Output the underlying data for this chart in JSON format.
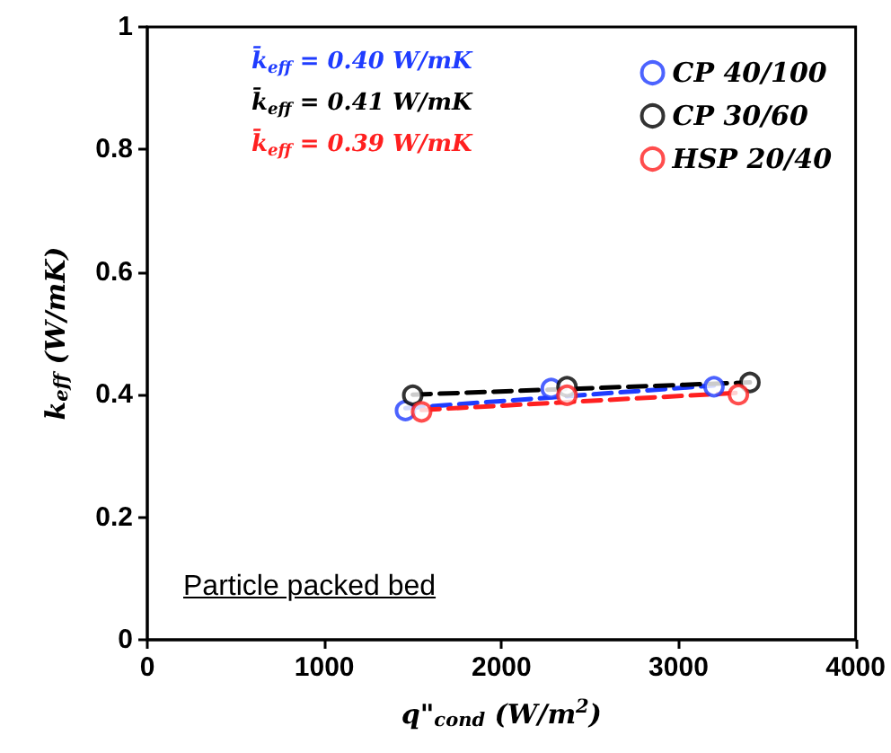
{
  "chart_data": {
    "type": "scatter",
    "xlabel": "q\"$_{cond}$ (W/m$^{2}$)",
    "ylabel": "k$_{eff}$ (W/mK)",
    "xlim": [
      0,
      4000
    ],
    "xticks": [
      0,
      1000,
      2000,
      3000,
      4000
    ],
    "ylim": [
      0,
      1
    ],
    "yticks": [
      0,
      0.2,
      0.4,
      0.6,
      0.8,
      1
    ],
    "grid": false,
    "legend": "top right",
    "marker": "circle",
    "annotations": [
      "k̄$_{eff}$ = 0.40 W/mK",
      "k̄$_{eff}$ = 0.41 W/mK",
      "k̄$_{eff}$ = 0.39 W/mK",
      "Particle packed bed"
    ],
    "series": [
      {
        "name": "CP 40/100",
        "color": "#1f3cff",
        "x": [
          1458,
          2281,
          3200
        ],
        "values": [
          0.374,
          0.41,
          0.413
        ]
      },
      {
        "name": "CP 30/60",
        "color": "#000000",
        "x": [
          1499,
          2370,
          3403
        ],
        "values": [
          0.399,
          0.413,
          0.42
        ]
      },
      {
        "name": "HSP 20/40",
        "color": "#ff2020",
        "x": [
          1549,
          2370,
          3338
        ],
        "values": [
          0.372,
          0.399,
          0.4
        ]
      },
      {
        "type": "line",
        "marker": "none",
        "line_style": "dashed",
        "color": "#1f3cff",
        "x": [
          1458,
          3200
        ],
        "values": [
          0.378,
          0.415
        ]
      },
      {
        "type": "line",
        "marker": "none",
        "line_style": "dashed",
        "color": "#000000",
        "x": [
          1499,
          3403
        ],
        "values": [
          0.4,
          0.42
        ]
      },
      {
        "type": "line",
        "marker": "none",
        "line_style": "dashed",
        "color": "#ff2020",
        "x": [
          1549,
          3338
        ],
        "values": [
          0.375,
          0.403
        ]
      }
    ]
  }
}
